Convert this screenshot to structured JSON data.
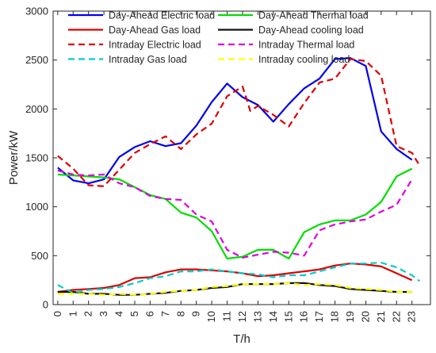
{
  "chart_data": {
    "type": "line",
    "title": "",
    "xlabel": "T/h",
    "ylabel": "Power/kW",
    "xlim": [
      -0.3,
      24.2
    ],
    "ylim": [
      0,
      3000
    ],
    "yticks": [
      0,
      500,
      1000,
      1500,
      2000,
      2500,
      3000
    ],
    "x": [
      0,
      1,
      2,
      3,
      4,
      5,
      6,
      7,
      8,
      9,
      10,
      11,
      12,
      13,
      14,
      15,
      16,
      17,
      18,
      19,
      20,
      21,
      22,
      23
    ],
    "x_tick_labels": [
      "0",
      "1",
      "2",
      "3",
      "4",
      "5",
      "6",
      "7",
      "8",
      "9",
      "10",
      "11",
      "12",
      "13",
      "14",
      "15",
      "16",
      "17",
      "18",
      "19",
      "20",
      "21",
      "22",
      "23"
    ],
    "grid": false,
    "legend_position": "top, inside plot, two columns",
    "series": [
      {
        "name": "Day-Ahead Electric load",
        "color": "#0000ee",
        "style": "solid",
        "x": [
          0,
          1,
          2,
          3,
          4,
          5,
          6,
          7,
          8,
          9,
          10,
          11,
          12,
          13,
          14,
          15,
          16,
          17,
          18,
          19,
          20,
          21,
          22,
          23
        ],
        "values": [
          1400,
          1270,
          1240,
          1280,
          1510,
          1610,
          1670,
          1620,
          1650,
          1830,
          2070,
          2260,
          2120,
          2040,
          1870,
          2050,
          2210,
          2310,
          2510,
          2520,
          2440,
          1770,
          1590,
          1480
        ]
      },
      {
        "name": "Day-Ahead Thermal load",
        "color": "#00dd00",
        "style": "solid",
        "x": [
          0,
          1,
          2,
          3,
          4,
          5,
          6,
          7,
          8,
          9,
          10,
          11,
          12,
          13,
          14,
          15,
          16,
          17,
          18,
          19,
          20,
          21,
          22,
          23
        ],
        "values": [
          1330,
          1320,
          1310,
          1300,
          1280,
          1200,
          1120,
          1080,
          940,
          890,
          750,
          470,
          490,
          560,
          560,
          470,
          740,
          820,
          860,
          860,
          920,
          1050,
          1310,
          1390
        ]
      },
      {
        "name": "Day-Ahead Gas load",
        "color": "#dd0000",
        "style": "solid",
        "x": [
          0,
          1,
          2,
          3,
          4,
          5,
          6,
          7,
          8,
          9,
          10,
          11,
          12,
          13,
          14,
          15,
          16,
          17,
          18,
          19,
          20,
          21,
          22,
          23
        ],
        "values": [
          130,
          150,
          160,
          170,
          200,
          270,
          280,
          330,
          360,
          360,
          350,
          340,
          320,
          290,
          300,
          320,
          340,
          360,
          400,
          420,
          410,
          390,
          320,
          250
        ]
      },
      {
        "name": "Day-Ahead cooling load",
        "color": "#111111",
        "style": "solid",
        "x": [
          0,
          1,
          2,
          3,
          4,
          5,
          6,
          7,
          8,
          9,
          10,
          11,
          12,
          13,
          14,
          15,
          16,
          17,
          18,
          19,
          20,
          21,
          22,
          23
        ],
        "values": [
          130,
          130,
          110,
          110,
          100,
          100,
          110,
          120,
          140,
          150,
          170,
          180,
          210,
          210,
          210,
          220,
          220,
          200,
          190,
          160,
          150,
          140,
          130,
          130
        ]
      },
      {
        "name": "Intraday Electric load",
        "color": "#dd0000",
        "style": "dashed",
        "x": [
          0,
          1,
          2,
          3,
          4,
          5,
          6,
          7,
          8,
          9,
          10,
          11,
          12,
          12.5,
          13,
          14,
          15,
          16,
          17,
          18,
          19,
          20,
          21,
          22,
          23,
          23.5
        ],
        "values": [
          1520,
          1390,
          1220,
          1210,
          1380,
          1550,
          1640,
          1720,
          1590,
          1740,
          1850,
          2130,
          2230,
          1980,
          2030,
          1940,
          1820,
          2060,
          2270,
          2310,
          2510,
          2490,
          2340,
          1620,
          1550,
          1420
        ]
      },
      {
        "name": "Intraday Thermal load",
        "color": "#dd00dd",
        "style": "dashed",
        "x": [
          0,
          1,
          2,
          3,
          4,
          5,
          6,
          7,
          8,
          9,
          10,
          11,
          12,
          13,
          14,
          15,
          16,
          17,
          18,
          19,
          20,
          21,
          22,
          23
        ],
        "values": [
          1370,
          1330,
          1320,
          1330,
          1240,
          1200,
          1110,
          1080,
          1070,
          920,
          850,
          560,
          480,
          510,
          540,
          530,
          500,
          760,
          820,
          850,
          870,
          950,
          1020,
          1280
        ]
      },
      {
        "name": "Intraday Gas load",
        "color": "#00cccc",
        "style": "dashed",
        "x": [
          0,
          1,
          2,
          3,
          4,
          5,
          6,
          7,
          8,
          9,
          10,
          11,
          12,
          13,
          14,
          15,
          16,
          17,
          18,
          19,
          20,
          21,
          22,
          23,
          23.5
        ],
        "values": [
          200,
          120,
          150,
          160,
          180,
          220,
          270,
          290,
          340,
          340,
          360,
          340,
          320,
          310,
          280,
          300,
          300,
          340,
          380,
          420,
          420,
          430,
          380,
          300,
          240
        ]
      },
      {
        "name": "Intraday cooling load",
        "color": "#ffff00",
        "style": "dashed",
        "x": [
          0,
          1,
          2,
          3,
          4,
          5,
          6,
          7,
          8,
          9,
          10,
          11,
          12,
          13,
          14,
          15,
          16,
          17,
          18,
          19,
          20,
          21,
          22,
          23
        ],
        "values": [
          110,
          110,
          110,
          100,
          110,
          100,
          110,
          130,
          140,
          150,
          180,
          190,
          210,
          210,
          210,
          220,
          200,
          210,
          200,
          170,
          160,
          150,
          130,
          130
        ]
      }
    ]
  }
}
